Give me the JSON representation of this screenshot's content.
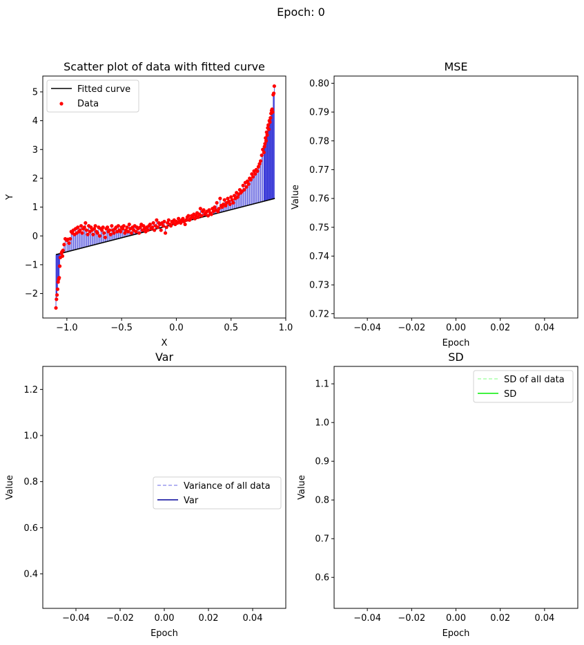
{
  "suptitle": "Epoch: 0",
  "chart_data": [
    {
      "type": "scatter",
      "title": "Scatter plot of data with fitted curve",
      "xlabel": "X",
      "ylabel": "Y",
      "xlim": [
        -1.22,
        1.0
      ],
      "ylim": [
        -2.85,
        5.55
      ],
      "xticks": [
        -1.0,
        -0.5,
        0.0,
        0.5,
        1.0
      ],
      "xticklabels": [
        "−1.0",
        "−0.5",
        "0.0",
        "0.5",
        "1.0"
      ],
      "yticks": [
        -2,
        -1,
        0,
        1,
        2,
        3,
        4,
        5
      ],
      "yticklabels": [
        "−2",
        "−1",
        "0",
        "1",
        "2",
        "3",
        "4",
        "5"
      ],
      "legend": {
        "position": "upper left",
        "entries": [
          "Fitted curve",
          "Data"
        ]
      },
      "fitted_curve": {
        "name": "Fitted curve",
        "color": "#000000",
        "x": [
          -1.1,
          0.9
        ],
        "y": [
          -0.65,
          1.3
        ]
      },
      "residual_color": "#0000cc",
      "data_color": "#ff0000",
      "data": [
        [
          -1.1,
          -2.5
        ],
        [
          -1.095,
          -2.2
        ],
        [
          -1.09,
          -2.05
        ],
        [
          -1.085,
          -1.85
        ],
        [
          -1.08,
          -1.6
        ],
        [
          -1.075,
          -1.5
        ],
        [
          -1.07,
          -1.45
        ],
        [
          -1.065,
          -1.05
        ],
        [
          -1.06,
          -0.75
        ],
        [
          -1.05,
          -0.6
        ],
        [
          -1.045,
          -0.55
        ],
        [
          -1.04,
          -0.7
        ],
        [
          -1.035,
          -0.5
        ],
        [
          -1.025,
          -0.3
        ],
        [
          -1.015,
          -0.1
        ],
        [
          -1.0,
          -0.15
        ],
        [
          -0.99,
          -0.12
        ],
        [
          -0.98,
          -0.25
        ],
        [
          -0.97,
          -0.1
        ],
        [
          -0.96,
          0.15
        ],
        [
          -0.95,
          0.1
        ],
        [
          -0.94,
          0.2
        ],
        [
          -0.93,
          0.05
        ],
        [
          -0.92,
          0.25
        ],
        [
          -0.91,
          0.1
        ],
        [
          -0.9,
          0.3
        ],
        [
          -0.89,
          0.15
        ],
        [
          -0.88,
          0.2
        ],
        [
          -0.87,
          0.35
        ],
        [
          -0.86,
          0.1
        ],
        [
          -0.85,
          0.25
        ],
        [
          -0.84,
          0.3
        ],
        [
          -0.83,
          0.45
        ],
        [
          -0.82,
          0.2
        ],
        [
          -0.81,
          0.05
        ],
        [
          -0.8,
          0.35
        ],
        [
          -0.79,
          0.15
        ],
        [
          -0.78,
          0.3
        ],
        [
          -0.77,
          0.2
        ],
        [
          -0.76,
          0.05
        ],
        [
          -0.75,
          0.25
        ],
        [
          -0.74,
          0.35
        ],
        [
          -0.73,
          0.15
        ],
        [
          -0.72,
          0.1
        ],
        [
          -0.71,
          0.3
        ],
        [
          -0.7,
          0.0
        ],
        [
          -0.69,
          0.25
        ],
        [
          -0.68,
          0.2
        ],
        [
          -0.67,
          0.3
        ],
        [
          -0.66,
          0.1
        ],
        [
          -0.65,
          -0.05
        ],
        [
          -0.64,
          0.25
        ],
        [
          -0.63,
          0.3
        ],
        [
          -0.62,
          0.15
        ],
        [
          -0.61,
          0.2
        ],
        [
          -0.6,
          0.05
        ],
        [
          -0.59,
          0.35
        ],
        [
          -0.58,
          0.2
        ],
        [
          -0.57,
          0.1
        ],
        [
          -0.56,
          0.25
        ],
        [
          -0.55,
          0.3
        ],
        [
          -0.54,
          0.15
        ],
        [
          -0.53,
          0.35
        ],
        [
          -0.52,
          0.2
        ],
        [
          -0.51,
          0.15
        ],
        [
          -0.5,
          0.3
        ],
        [
          -0.49,
          0.25
        ],
        [
          -0.48,
          0.35
        ],
        [
          -0.47,
          0.1
        ],
        [
          -0.46,
          0.2
        ],
        [
          -0.45,
          0.3
        ],
        [
          -0.44,
          0.15
        ],
        [
          -0.43,
          0.4
        ],
        [
          -0.42,
          0.25
        ],
        [
          -0.41,
          0.1
        ],
        [
          -0.4,
          0.3
        ],
        [
          -0.39,
          0.2
        ],
        [
          -0.38,
          0.35
        ],
        [
          -0.37,
          0.15
        ],
        [
          -0.36,
          0.3
        ],
        [
          -0.35,
          0.25
        ],
        [
          -0.34,
          0.1
        ],
        [
          -0.33,
          0.3
        ],
        [
          -0.32,
          0.4
        ],
        [
          -0.31,
          0.2
        ],
        [
          -0.3,
          0.35
        ],
        [
          -0.29,
          0.25
        ],
        [
          -0.28,
          0.15
        ],
        [
          -0.27,
          0.3
        ],
        [
          -0.26,
          0.2
        ],
        [
          -0.25,
          0.35
        ],
        [
          -0.24,
          0.4
        ],
        [
          -0.23,
          0.25
        ],
        [
          -0.22,
          0.3
        ],
        [
          -0.21,
          0.45
        ],
        [
          -0.2,
          0.2
        ],
        [
          -0.19,
          0.35
        ],
        [
          -0.18,
          0.55
        ],
        [
          -0.17,
          0.3
        ],
        [
          -0.16,
          0.45
        ],
        [
          -0.15,
          0.4
        ],
        [
          -0.14,
          0.2
        ],
        [
          -0.13,
          0.45
        ],
        [
          -0.12,
          0.35
        ],
        [
          -0.11,
          0.5
        ],
        [
          -0.1,
          0.1
        ],
        [
          -0.09,
          0.3
        ],
        [
          -0.08,
          0.45
        ],
        [
          -0.07,
          0.55
        ],
        [
          -0.06,
          0.4
        ],
        [
          -0.05,
          0.35
        ],
        [
          -0.04,
          0.5
        ],
        [
          -0.03,
          0.45
        ],
        [
          -0.02,
          0.55
        ],
        [
          -0.01,
          0.4
        ],
        [
          0.0,
          0.5
        ],
        [
          0.01,
          0.45
        ],
        [
          0.02,
          0.6
        ],
        [
          0.03,
          0.5
        ],
        [
          0.04,
          0.45
        ],
        [
          0.05,
          0.55
        ],
        [
          0.06,
          0.6
        ],
        [
          0.07,
          0.5
        ],
        [
          0.08,
          0.4
        ],
        [
          0.09,
          0.55
        ],
        [
          0.1,
          0.65
        ],
        [
          0.11,
          0.7
        ],
        [
          0.12,
          0.55
        ],
        [
          0.13,
          0.6
        ],
        [
          0.14,
          0.7
        ],
        [
          0.15,
          0.65
        ],
        [
          0.16,
          0.75
        ],
        [
          0.17,
          0.6
        ],
        [
          0.18,
          0.7
        ],
        [
          0.19,
          0.8
        ],
        [
          0.2,
          0.65
        ],
        [
          0.21,
          0.75
        ],
        [
          0.22,
          0.95
        ],
        [
          0.23,
          0.7
        ],
        [
          0.24,
          0.85
        ],
        [
          0.25,
          0.9
        ],
        [
          0.26,
          0.75
        ],
        [
          0.27,
          0.8
        ],
        [
          0.28,
          0.85
        ],
        [
          0.29,
          0.7
        ],
        [
          0.3,
          0.9
        ],
        [
          0.31,
          0.8
        ],
        [
          0.32,
          0.75
        ],
        [
          0.33,
          0.95
        ],
        [
          0.34,
          0.85
        ],
        [
          0.35,
          1.0
        ],
        [
          0.36,
          0.9
        ],
        [
          0.37,
          1.15
        ],
        [
          0.38,
          0.85
        ],
        [
          0.39,
          0.95
        ],
        [
          0.4,
          1.3
        ],
        [
          0.41,
          1.05
        ],
        [
          0.42,
          1.0
        ],
        [
          0.43,
          1.1
        ],
        [
          0.44,
          1.25
        ],
        [
          0.45,
          1.05
        ],
        [
          0.46,
          1.15
        ],
        [
          0.47,
          1.3
        ],
        [
          0.48,
          1.2
        ],
        [
          0.49,
          1.1
        ],
        [
          0.5,
          1.35
        ],
        [
          0.51,
          1.25
        ],
        [
          0.52,
          1.15
        ],
        [
          0.53,
          1.4
        ],
        [
          0.54,
          1.3
        ],
        [
          0.55,
          1.5
        ],
        [
          0.56,
          1.35
        ],
        [
          0.57,
          1.45
        ],
        [
          0.58,
          1.6
        ],
        [
          0.59,
          1.5
        ],
        [
          0.6,
          1.55
        ],
        [
          0.61,
          1.75
        ],
        [
          0.62,
          1.6
        ],
        [
          0.63,
          1.85
        ],
        [
          0.64,
          1.7
        ],
        [
          0.65,
          1.9
        ],
        [
          0.66,
          1.8
        ],
        [
          0.67,
          2.0
        ],
        [
          0.68,
          1.95
        ],
        [
          0.69,
          2.15
        ],
        [
          0.7,
          2.05
        ],
        [
          0.71,
          2.25
        ],
        [
          0.72,
          2.15
        ],
        [
          0.73,
          2.3
        ],
        [
          0.74,
          2.25
        ],
        [
          0.75,
          2.4
        ],
        [
          0.76,
          2.5
        ],
        [
          0.77,
          2.6
        ],
        [
          0.78,
          2.8
        ],
        [
          0.79,
          3.0
        ],
        [
          0.8,
          2.9
        ],
        [
          0.805,
          3.1
        ],
        [
          0.81,
          3.2
        ],
        [
          0.815,
          3.4
        ],
        [
          0.82,
          3.3
        ],
        [
          0.825,
          3.6
        ],
        [
          0.83,
          3.5
        ],
        [
          0.835,
          3.75
        ],
        [
          0.84,
          3.85
        ],
        [
          0.845,
          3.7
        ],
        [
          0.85,
          4.0
        ],
        [
          0.855,
          3.95
        ],
        [
          0.86,
          4.1
        ],
        [
          0.865,
          4.25
        ],
        [
          0.87,
          4.35
        ],
        [
          0.875,
          4.4
        ],
        [
          0.88,
          4.3
        ],
        [
          0.885,
          4.9
        ],
        [
          0.89,
          4.95
        ],
        [
          0.895,
          5.2
        ]
      ]
    },
    {
      "type": "line",
      "title": "MSE",
      "xlabel": "Epoch",
      "ylabel": "Value",
      "xlim": [
        -0.055,
        0.055
      ],
      "ylim": [
        0.7185,
        0.8025
      ],
      "xticks": [
        -0.04,
        -0.02,
        0.0,
        0.02,
        0.04
      ],
      "xticklabels": [
        "−0.04",
        "−0.02",
        "0.00",
        "0.02",
        "0.04"
      ],
      "yticks": [
        0.72,
        0.73,
        0.74,
        0.75,
        0.76,
        0.77,
        0.78,
        0.79,
        0.8
      ],
      "yticklabels": [
        "0.72",
        "0.73",
        "0.74",
        "0.75",
        "0.76",
        "0.77",
        "0.78",
        "0.79",
        "0.80"
      ],
      "series": []
    },
    {
      "type": "line",
      "title": "Var",
      "xlabel": "Epoch",
      "ylabel": "Value",
      "xlim": [
        -0.055,
        0.055
      ],
      "ylim": [
        0.25,
        1.3
      ],
      "xticks": [
        -0.04,
        -0.02,
        0.0,
        0.02,
        0.04
      ],
      "xticklabels": [
        "−0.04",
        "−0.02",
        "0.00",
        "0.02",
        "0.04"
      ],
      "yticks": [
        0.4,
        0.6,
        0.8,
        1.0,
        1.2
      ],
      "yticklabels": [
        "0.4",
        "0.6",
        "0.8",
        "1.0",
        "1.2"
      ],
      "legend": {
        "position": "center right",
        "entries": [
          {
            "name": "Variance of all data",
            "color": "#9999ee",
            "style": "dashed"
          },
          {
            "name": "Var",
            "color": "#000099",
            "style": "solid"
          }
        ]
      }
    },
    {
      "type": "line",
      "title": "SD",
      "xlabel": "Epoch",
      "ylabel": "Value",
      "xlim": [
        -0.055,
        0.055
      ],
      "ylim": [
        0.52,
        1.145
      ],
      "xticks": [
        -0.04,
        -0.02,
        0.0,
        0.02,
        0.04
      ],
      "xticklabels": [
        "−0.04",
        "−0.02",
        "0.00",
        "0.02",
        "0.04"
      ],
      "yticks": [
        0.6,
        0.7,
        0.8,
        0.9,
        1.0,
        1.1
      ],
      "yticklabels": [
        "0.6",
        "0.7",
        "0.8",
        "0.9",
        "1.0",
        "1.1"
      ],
      "legend": {
        "position": "upper right",
        "entries": [
          {
            "name": "SD of all data",
            "color": "#aaffaa",
            "style": "dashed"
          },
          {
            "name": "SD",
            "color": "#00ee00",
            "style": "solid"
          }
        ]
      }
    }
  ]
}
